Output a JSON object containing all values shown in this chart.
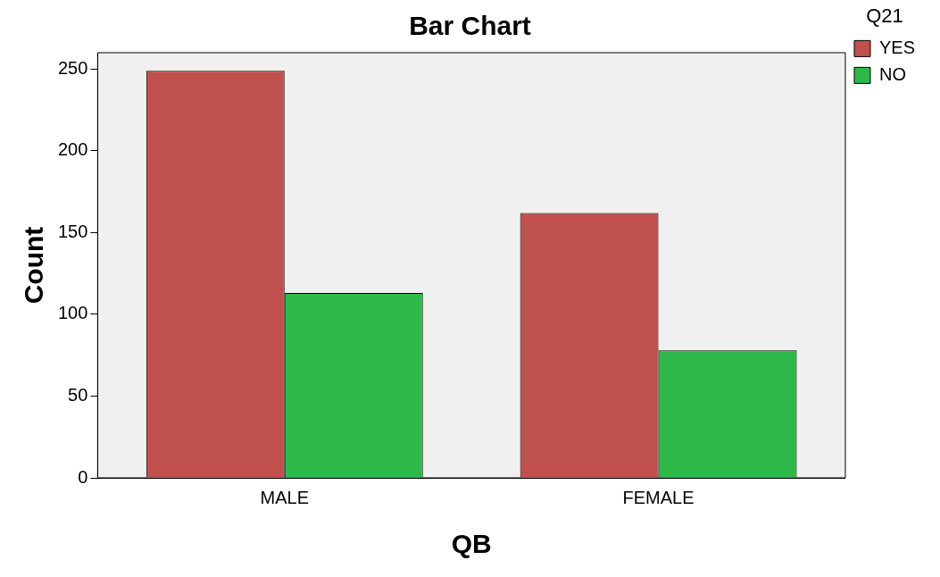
{
  "chart_data": {
    "type": "bar",
    "title": "Bar Chart",
    "xlabel": "QB",
    "ylabel": "Count",
    "legend_title": "Q21",
    "categories": [
      "MALE",
      "FEMALE"
    ],
    "series": [
      {
        "name": "YES",
        "color": "#c0504d",
        "values": [
          249,
          162
        ]
      },
      {
        "name": "NO",
        "color": "#2eb84a",
        "values": [
          113,
          78
        ]
      }
    ],
    "ylim": [
      0,
      260
    ],
    "yticks": [
      0,
      50,
      100,
      150,
      200,
      250
    ],
    "grid": false,
    "legend": "right"
  }
}
